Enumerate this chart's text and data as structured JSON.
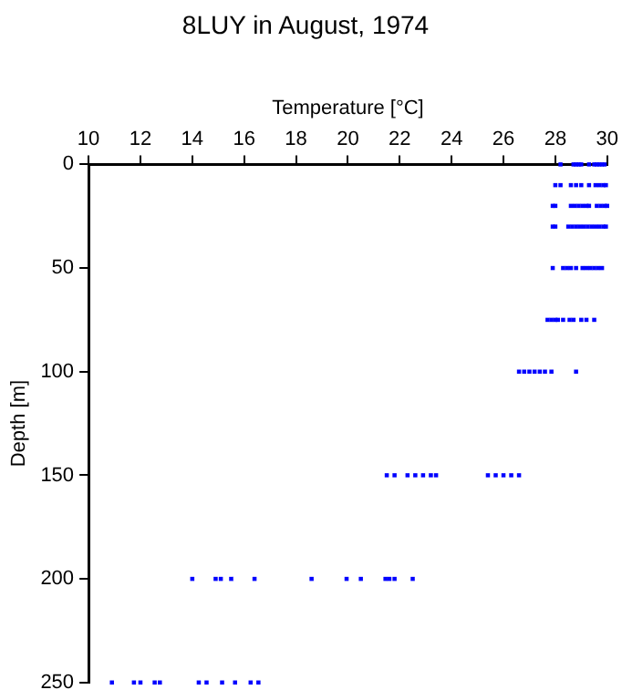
{
  "chart_data": {
    "type": "scatter",
    "title": "8LUY in August, 1974",
    "xlabel": "Temperature [°C]",
    "ylabel": "Depth [m]",
    "series": [
      {
        "color": "#0000ff",
        "x": [
          28.2,
          28.7,
          28.8,
          28.9,
          29.0,
          29.3,
          29.5,
          29.6,
          29.7,
          29.8,
          29.9,
          28.0,
          28.2,
          28.6,
          28.8,
          29.0,
          29.3,
          29.55,
          29.7,
          29.85,
          29.95,
          27.9,
          28.0,
          28.6,
          28.75,
          28.9,
          29.05,
          29.2,
          29.3,
          29.6,
          29.75,
          29.9,
          30.0,
          27.9,
          28.0,
          28.5,
          28.65,
          28.8,
          28.95,
          29.1,
          29.25,
          29.4,
          29.55,
          29.7,
          29.85,
          29.95,
          27.9,
          28.3,
          28.45,
          28.6,
          28.8,
          29.05,
          29.2,
          29.35,
          29.5,
          29.65,
          29.8,
          27.7,
          27.85,
          28.0,
          28.1,
          28.3,
          28.55,
          28.7,
          29.0,
          29.2,
          29.5,
          26.6,
          26.8,
          27.0,
          27.2,
          27.4,
          27.6,
          27.85,
          28.8,
          21.5,
          21.8,
          22.3,
          22.6,
          22.9,
          23.2,
          23.4,
          25.4,
          25.7,
          26.0,
          26.3,
          26.6,
          14.0,
          14.9,
          15.1,
          15.5,
          16.4,
          18.6,
          19.95,
          20.5,
          21.45,
          21.6,
          21.8,
          22.5,
          10.9,
          11.75,
          12.0,
          12.55,
          12.75,
          14.25,
          14.55,
          15.15,
          15.65,
          16.25,
          16.55
        ],
        "values": [
          0,
          0,
          0,
          0,
          0,
          0,
          0,
          0,
          0,
          0,
          0,
          10,
          10,
          10,
          10,
          10,
          10,
          10,
          10,
          10,
          10,
          20,
          20,
          20,
          20,
          20,
          20,
          20,
          20,
          20,
          20,
          20,
          20,
          30,
          30,
          30,
          30,
          30,
          30,
          30,
          30,
          30,
          30,
          30,
          30,
          30,
          50,
          50,
          50,
          50,
          50,
          50,
          50,
          50,
          50,
          50,
          50,
          75,
          75,
          75,
          75,
          75,
          75,
          75,
          75,
          75,
          75,
          100,
          100,
          100,
          100,
          100,
          100,
          100,
          100,
          150,
          150,
          150,
          150,
          150,
          150,
          150,
          150,
          150,
          150,
          150,
          150,
          200,
          200,
          200,
          200,
          200,
          200,
          200,
          200,
          200,
          200,
          200,
          200,
          250,
          250,
          250,
          250,
          250,
          250,
          250,
          250,
          250,
          250,
          250
        ]
      }
    ],
    "xlim": [
      10,
      30
    ],
    "xticks": [
      10,
      12,
      14,
      16,
      18,
      20,
      22,
      24,
      26,
      28,
      30
    ],
    "ylim": [
      250,
      0
    ],
    "yticks": [
      0,
      50,
      100,
      150,
      200,
      250
    ],
    "grid": false,
    "legend": false,
    "marker": "square"
  }
}
